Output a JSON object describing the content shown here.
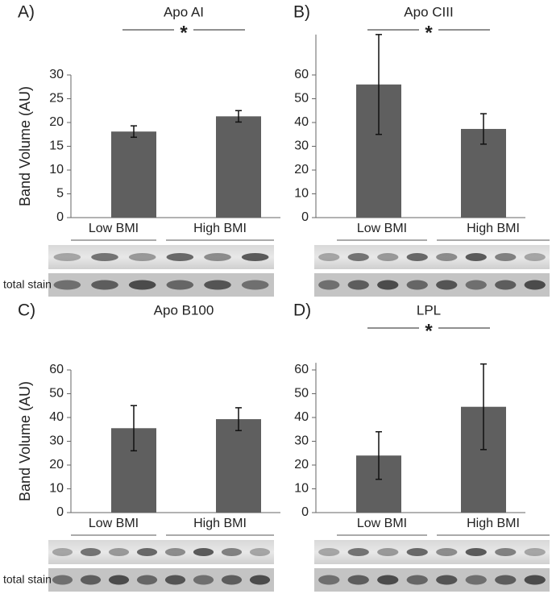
{
  "chart_data": [
    {
      "type": "bar",
      "panel_label": "A)",
      "title": "Apo AI",
      "annotation": "*",
      "ylabel": "Band Volume (AU)",
      "categories": [
        "Low BMI",
        "High BMI"
      ],
      "values": [
        18.1,
        21.3
      ],
      "errors": [
        1.2,
        1.2
      ],
      "color": "#5f5f5f",
      "ylim": [
        0,
        30
      ],
      "yticks": [
        0,
        5,
        10,
        15,
        20,
        25,
        30
      ],
      "stain_label": "total stain"
    },
    {
      "type": "bar",
      "panel_label": "B)",
      "title": "Apo CIII",
      "annotation": "*",
      "categories": [
        "Low BMI",
        "High BMI"
      ],
      "values": [
        56,
        37.3
      ],
      "errors": [
        21,
        6.4
      ],
      "color": "#5f5f5f",
      "ylim": [
        0,
        77
      ],
      "yticks": [
        0,
        10,
        20,
        30,
        40,
        50,
        60
      ]
    },
    {
      "type": "bar",
      "panel_label": "C)",
      "title": "Apo B100",
      "ylabel": "Band Volume (AU)",
      "categories": [
        "Low BMI",
        "High BMI"
      ],
      "values": [
        35.5,
        39.3
      ],
      "errors": [
        9.5,
        4.8
      ],
      "color": "#5f5f5f",
      "ylim": [
        0,
        60
      ],
      "yticks": [
        0,
        10,
        20,
        30,
        40,
        50,
        60
      ],
      "stain_label": "total stain"
    },
    {
      "type": "bar",
      "panel_label": "D)",
      "title": "LPL",
      "annotation": "*",
      "categories": [
        "Low BMI",
        "High BMI"
      ],
      "values": [
        24,
        44.5
      ],
      "errors": [
        10,
        18
      ],
      "color": "#5f5f5f",
      "ylim": [
        0,
        63
      ],
      "yticks": [
        0,
        10,
        20,
        30,
        40,
        50,
        60
      ]
    }
  ]
}
